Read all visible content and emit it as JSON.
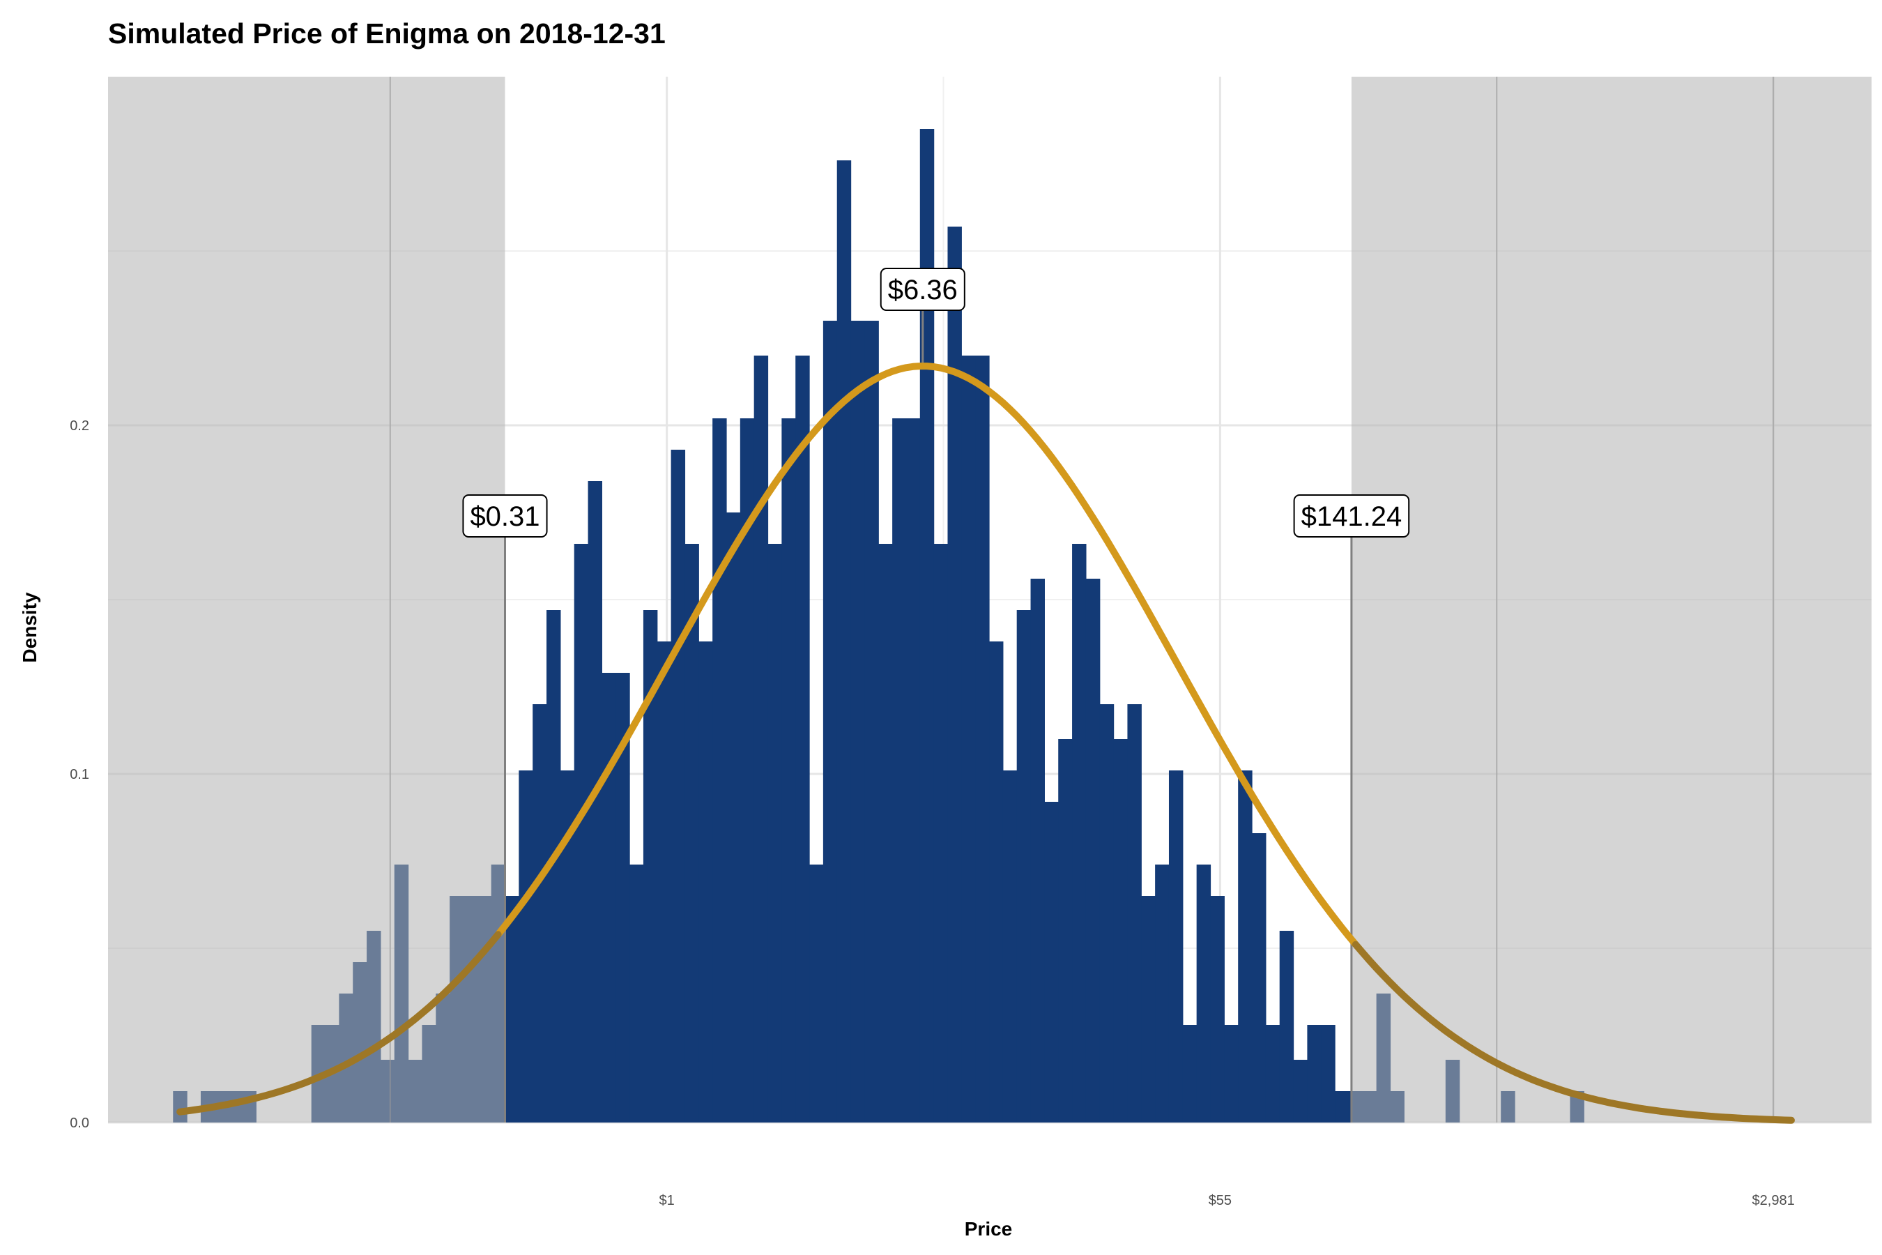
{
  "chart_data": {
    "type": "histogram",
    "title": "Simulated Price of Enigma on 2018-12-31",
    "xlabel": "Price",
    "ylabel": "Density",
    "x_scale": "log",
    "x_bin_width_log": 0.1,
    "x_log_range": [
      -3.52,
      8.13
    ],
    "xlim_log": [
      -4.04,
      8.71
    ],
    "ylim": [
      0,
      0.3
    ],
    "x_ticks": [
      {
        "label": "$1",
        "log": 0
      },
      {
        "label": "$55",
        "log": 4.0
      },
      {
        "label": "$2,981",
        "log": 8.0
      }
    ],
    "x_minor_log": [
      -2,
      2,
      6
    ],
    "y_ticks": [
      {
        "label": "0.0",
        "value": 0.0
      },
      {
        "label": "0.1",
        "value": 0.1
      },
      {
        "label": "0.2",
        "value": 0.2
      }
    ],
    "y_minor": [
      0.05,
      0.15,
      0.25
    ],
    "histogram_values": [
      0.009,
      0,
      0.009,
      0.009,
      0.009,
      0.009,
      0,
      0,
      0,
      0,
      0.028,
      0.028,
      0.037,
      0.046,
      0.055,
      0.018,
      0.074,
      0.018,
      0.028,
      0.037,
      0.065,
      0.065,
      0.065,
      0.074,
      0.065,
      0.101,
      0.12,
      0.147,
      0.101,
      0.166,
      0.184,
      0.129,
      0.129,
      0.074,
      0.147,
      0.138,
      0.193,
      0.166,
      0.138,
      0.202,
      0.175,
      0.202,
      0.22,
      0.166,
      0.202,
      0.22,
      0.074,
      0.23,
      0.276,
      0.23,
      0.23,
      0.166,
      0.202,
      0.202,
      0.285,
      0.166,
      0.257,
      0.22,
      0.22,
      0.138,
      0.101,
      0.147,
      0.156,
      0.092,
      0.11,
      0.166,
      0.156,
      0.12,
      0.11,
      0.12,
      0.065,
      0.074,
      0.101,
      0.028,
      0.074,
      0.065,
      0.028,
      0.101,
      0.083,
      0.028,
      0.055,
      0.018,
      0.028,
      0.028,
      0.009,
      0.009,
      0.009,
      0.037,
      0.009,
      0,
      0,
      0,
      0.018,
      0,
      0,
      0,
      0.009,
      0,
      0,
      0,
      0,
      0.009
    ],
    "fit_curve": {
      "type": "normal",
      "mean_log": 1.85,
      "sd_log": 1.84,
      "peak_density": 0.217,
      "color": "#D4991C"
    },
    "interval": {
      "lower": {
        "label": "$0.31",
        "log": -1.17,
        "label_y": 0.174
      },
      "median": {
        "label": "$6.36",
        "log": 1.85,
        "label_y": 0.239
      },
      "upper": {
        "label": "$141.24",
        "log": 4.95,
        "label_y": 0.174
      }
    },
    "colors": {
      "bar": "#133A76",
      "curve": "#D4991C",
      "shade": "#B3B3B3",
      "grid_major": "#E6E6E6",
      "grid_minor": "#F0F0F0",
      "vline": "#808080"
    }
  }
}
